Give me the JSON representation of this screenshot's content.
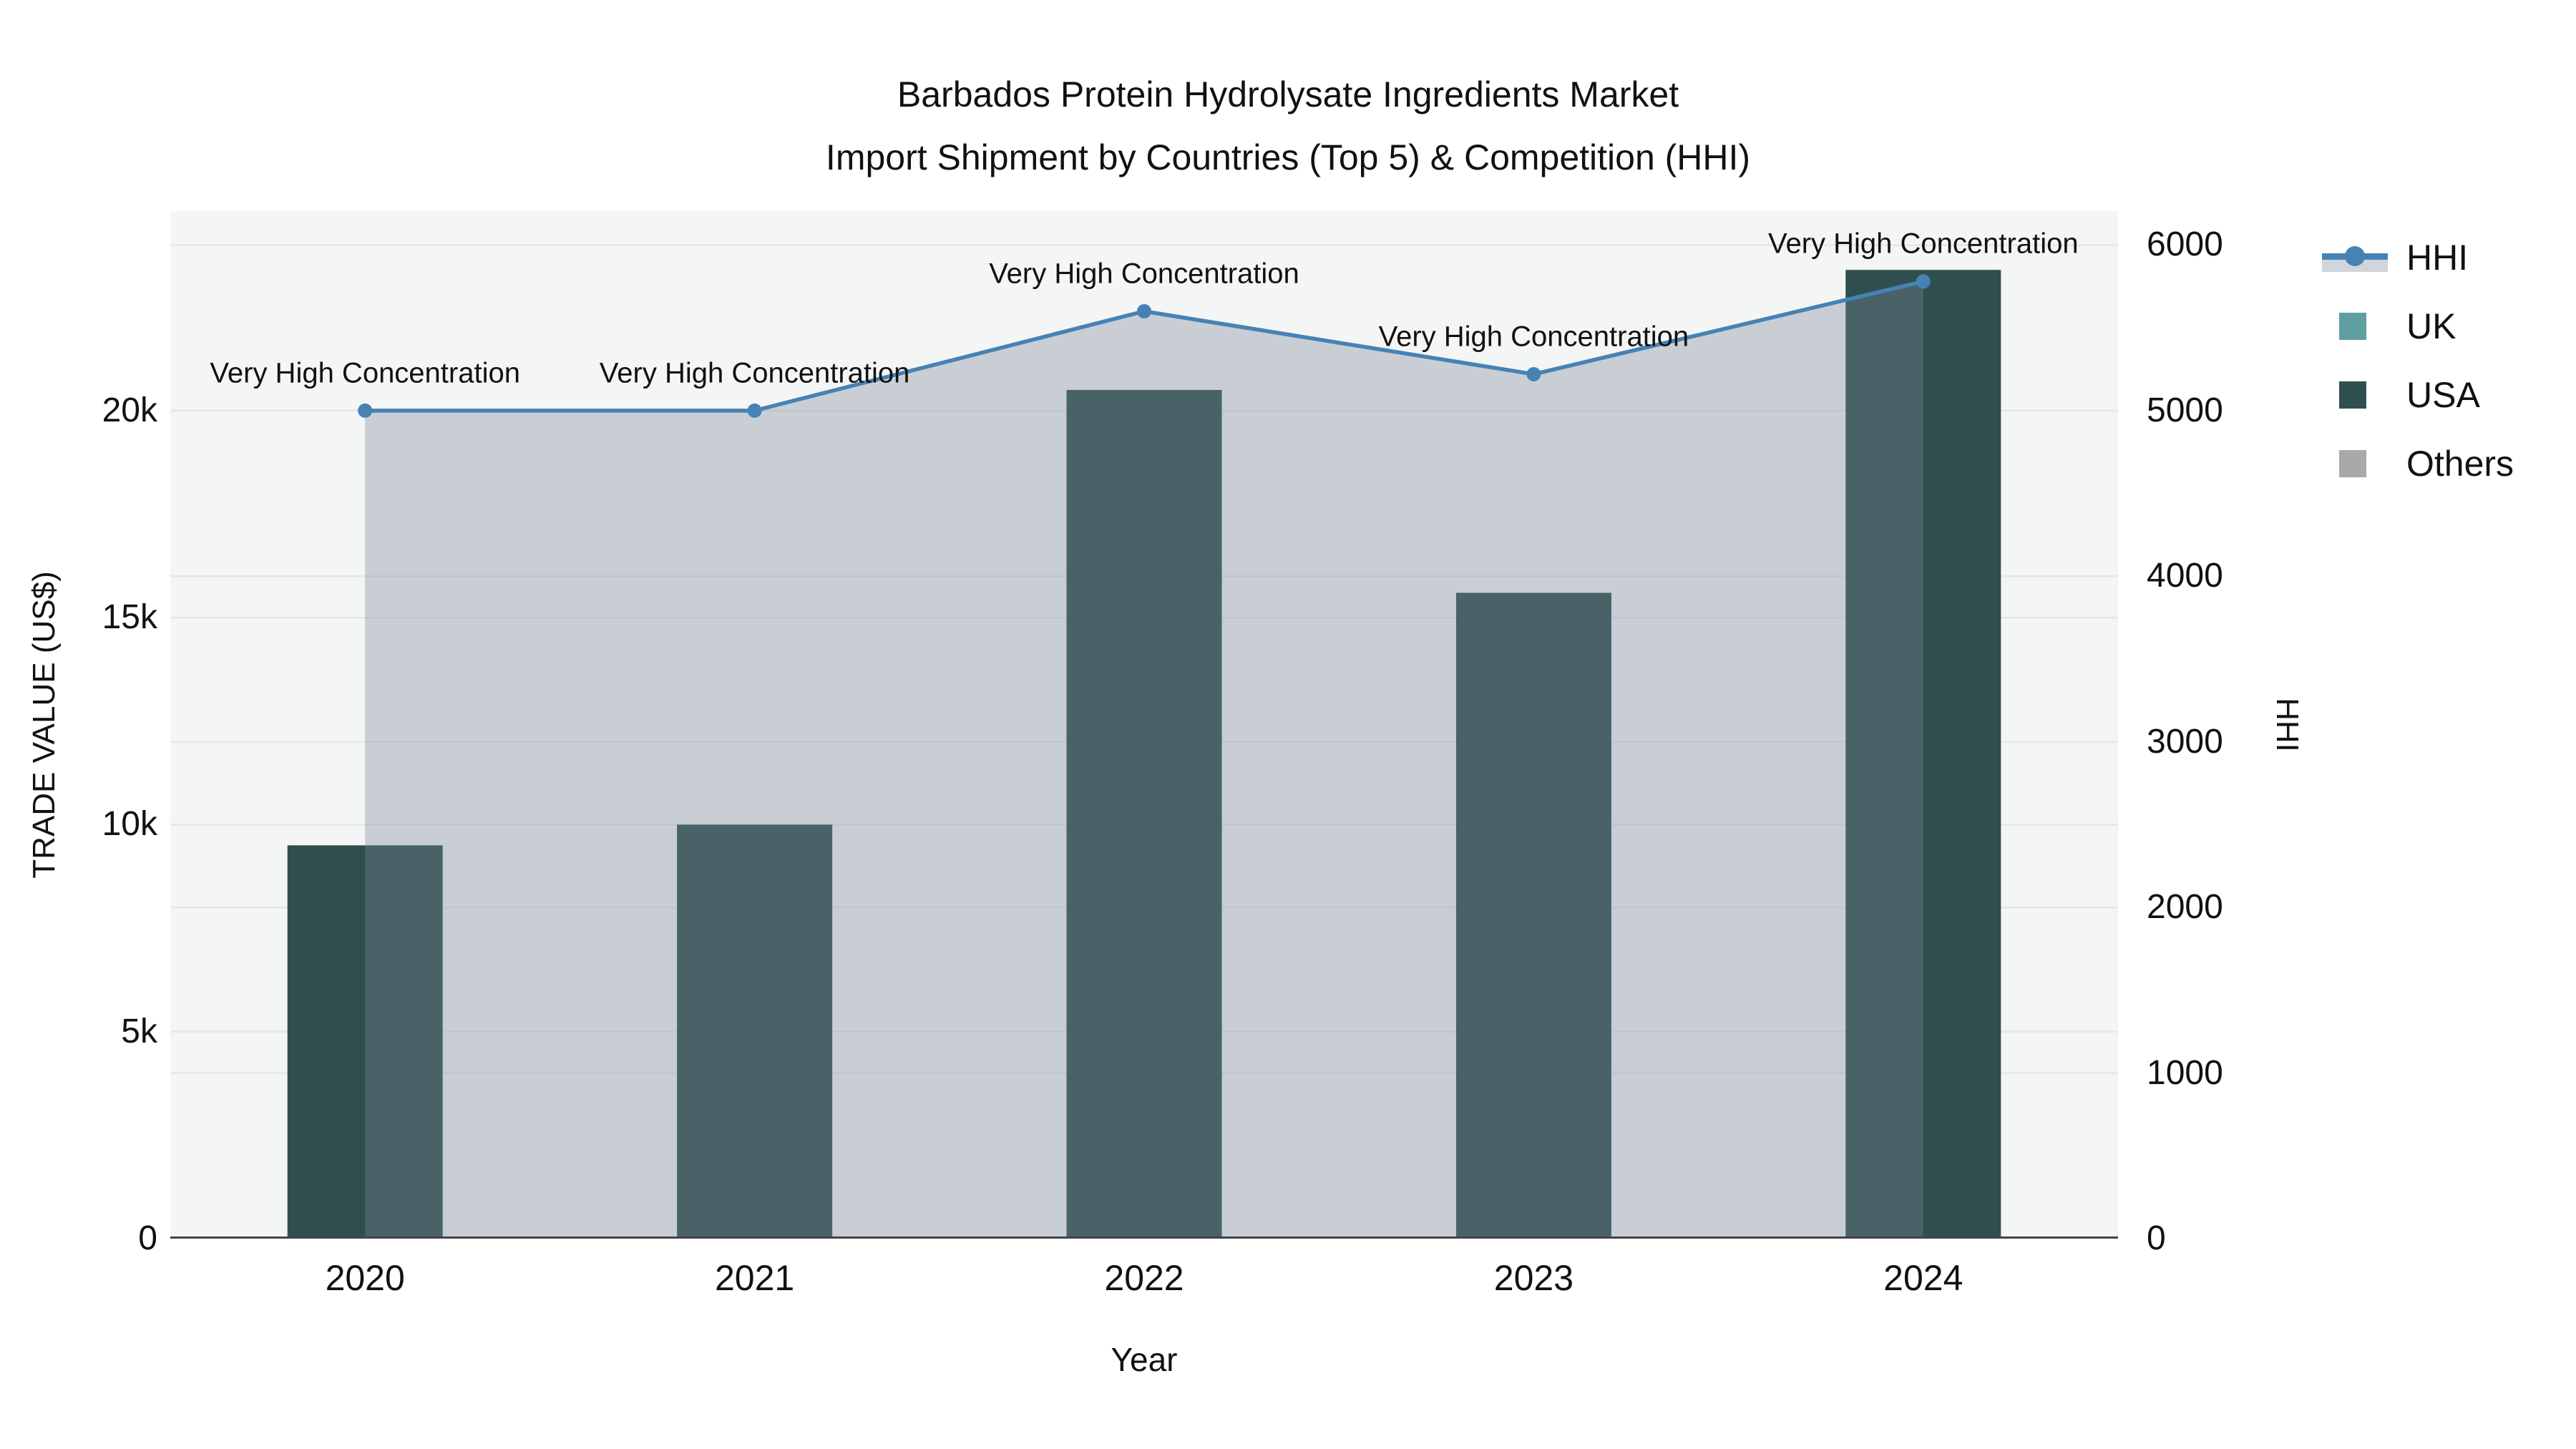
{
  "title": {
    "line1": "Barbados Protein Hydrolysate Ingredients Market",
    "line2": "Import Shipment by Countries (Top 5) & Competition (HHI)"
  },
  "axes": {
    "left": {
      "title": "TRADE VALUE (US$)",
      "ticks": [
        {
          "label": "0",
          "value": 0
        },
        {
          "label": "5k",
          "value": 5000
        },
        {
          "label": "10k",
          "value": 10000
        },
        {
          "label": "15k",
          "value": 15000
        },
        {
          "label": "20k",
          "value": 20000
        }
      ]
    },
    "right": {
      "title": "HHI",
      "ticks": [
        {
          "label": "0",
          "value": 0
        },
        {
          "label": "1000",
          "value": 1000
        },
        {
          "label": "2000",
          "value": 2000
        },
        {
          "label": "3000",
          "value": 3000
        },
        {
          "label": "4000",
          "value": 4000
        },
        {
          "label": "5000",
          "value": 5000
        },
        {
          "label": "6000",
          "value": 6000
        }
      ]
    },
    "x": {
      "title": "Year",
      "categories": [
        "2020",
        "2021",
        "2022",
        "2023",
        "2024"
      ]
    }
  },
  "legend": {
    "items": [
      {
        "label": "HHI",
        "symbol": "line",
        "color": "#4682B4",
        "band": "rgba(119,136,153,0.35)"
      },
      {
        "label": "UK",
        "symbol": "square",
        "color": "#5F9EA0"
      },
      {
        "label": "USA",
        "symbol": "square",
        "color": "#2F4F4F"
      },
      {
        "label": "Others",
        "symbol": "square",
        "color": "#A9A9A9"
      }
    ]
  },
  "chart_data": {
    "type": "combo-bar-line-area",
    "title": "Barbados Protein Hydrolysate Ingredients Market — Import Shipment by Countries (Top 5) & Competition (HHI)",
    "categories": [
      "2020",
      "2021",
      "2022",
      "2023",
      "2024"
    ],
    "series": [
      {
        "name": "UK",
        "type": "bar",
        "axis": "left",
        "color": "#5F9EA0",
        "values": [
          0,
          0,
          0,
          0,
          0
        ]
      },
      {
        "name": "USA",
        "type": "bar",
        "axis": "left",
        "color": "#2F4F4F",
        "values": [
          9500,
          10000,
          20500,
          15600,
          23400
        ]
      },
      {
        "name": "Others",
        "type": "bar",
        "axis": "left",
        "color": "#A9A9A9",
        "values": [
          0,
          0,
          0,
          0,
          0
        ]
      },
      {
        "name": "HHI",
        "type": "line",
        "axis": "right",
        "color": "#4682B4",
        "fill": "rgba(119,136,153,0.35)",
        "values": [
          5000,
          5000,
          5600,
          5220,
          5780
        ],
        "point_annotations": [
          "Very High Concentration",
          "Very High Concentration",
          "Very High Concentration",
          "Very High Concentration",
          "Very High Concentration"
        ]
      }
    ],
    "xlabel": "Year",
    "ylabel_left": "TRADE VALUE (US$)",
    "ylabel_right": "HHI",
    "ylim_left": [
      0,
      24820
    ],
    "ylim_right": [
      0,
      6205
    ],
    "grid": true,
    "legend_position": "right-top",
    "colors": {
      "plot_bg": "#F4F5F5",
      "paper_bg": "#FFFFFF",
      "grid_line": "#E4E7E8",
      "axis_line": "#444444",
      "hhi_line": "#4682B4",
      "area_fill": "rgba(119,136,153,0.35)"
    }
  }
}
